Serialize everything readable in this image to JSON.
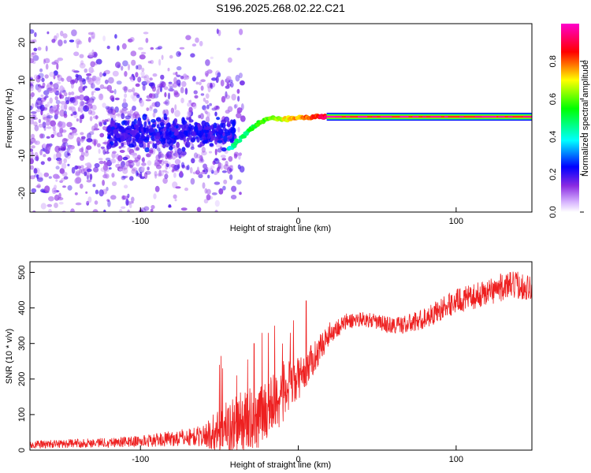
{
  "page": {
    "title": "S196.2025.268.02.22.C21"
  },
  "colors": {
    "snr_line": "#ee2020",
    "frame": "#000000",
    "background": "#ffffff"
  },
  "chart_data": [
    {
      "type": "heatmap",
      "title": "S196.2025.268.02.22.C21",
      "xlabel": "Height of straight line (km)",
      "ylabel": "Frequency (Hz)",
      "xlim": [
        -170,
        148
      ],
      "ylim": [
        -25,
        25
      ],
      "xticks": [
        -100,
        0,
        100
      ],
      "xtick_labels": [
        "-100",
        "0",
        "100"
      ],
      "yticks": [
        -20,
        -10,
        0,
        10,
        20
      ],
      "ytick_labels": [
        "-20",
        "-10",
        "0",
        "10",
        "20"
      ],
      "colorbar": {
        "label": "Normalized spectral amplitude",
        "range": [
          0,
          1
        ],
        "ticks": [
          0.0,
          0.2,
          0.4,
          0.6,
          0.8
        ],
        "tick_labels": [
          "0.0",
          "0.2",
          "0.4",
          "0.6",
          "0.8"
        ],
        "colormap": [
          "#ffffff",
          "#6a00ff",
          "#0000ff",
          "#00ffff",
          "#00ff00",
          "#ffff00",
          "#ff0000",
          "#ff00ff"
        ]
      },
      "features": {
        "noise_region_km": [
          -170,
          -45
        ],
        "noise_amplitude": [
          0.05,
          0.2
        ],
        "transition_track": [
          [
            -42,
            -8
          ],
          [
            -38,
            -6
          ],
          [
            -35,
            -5
          ],
          [
            -30,
            -3
          ],
          [
            -25,
            -1.5
          ],
          [
            -18,
            0
          ],
          [
            -10,
            -0.5
          ],
          [
            0,
            0
          ],
          [
            5,
            0
          ],
          [
            10,
            0.3
          ],
          [
            148,
            0.3
          ]
        ],
        "steady_signal_km": [
          18,
          148
        ],
        "steady_signal_frequency_hz": 0.3,
        "steady_signal_amplitude": 0.95
      }
    },
    {
      "type": "line",
      "xlabel": "Height of straight line (km)",
      "ylabel": "SNR (10 * v/v)",
      "xlim": [
        -170,
        148
      ],
      "ylim": [
        0,
        530
      ],
      "xticks": [
        -100,
        0,
        100
      ],
      "xtick_labels": [
        "-100",
        "0",
        "100"
      ],
      "yticks": [
        0,
        100,
        200,
        300,
        400,
        500
      ],
      "ytick_labels": [
        "0",
        "100",
        "200",
        "300",
        "400",
        "500"
      ],
      "series": [
        {
          "name": "SNR",
          "color": "#ee2020",
          "trend_x": [
            -170,
            -150,
            -120,
            -100,
            -80,
            -60,
            -50,
            -40,
            -30,
            -20,
            -10,
            0,
            10,
            20,
            30,
            40,
            50,
            60,
            70,
            80,
            90,
            100,
            110,
            120,
            130,
            140,
            148
          ],
          "trend_y": [
            15,
            18,
            22,
            25,
            32,
            40,
            55,
            70,
            85,
            110,
            160,
            200,
            260,
            330,
            360,
            370,
            360,
            350,
            355,
            370,
            395,
            420,
            430,
            445,
            460,
            465,
            455
          ],
          "noise": [
            12,
            12,
            14,
            16,
            22,
            30,
            70,
            90,
            90,
            90,
            90,
            60,
            45,
            30,
            25,
            20,
            22,
            25,
            28,
            30,
            32,
            35,
            35,
            38,
            40,
            40,
            35
          ],
          "spikes": [
            [
              -50,
              240
            ],
            [
              -49,
              265
            ],
            [
              -48,
              230
            ],
            [
              -39,
              210
            ],
            [
              -28,
              300
            ],
            [
              -23,
              330
            ],
            [
              -19,
              330
            ],
            [
              -15,
              350
            ],
            [
              -10,
              300
            ],
            [
              -3,
              365
            ],
            [
              5,
              420
            ],
            [
              -32,
              255
            ],
            [
              -5,
              330
            ]
          ]
        }
      ]
    }
  ]
}
